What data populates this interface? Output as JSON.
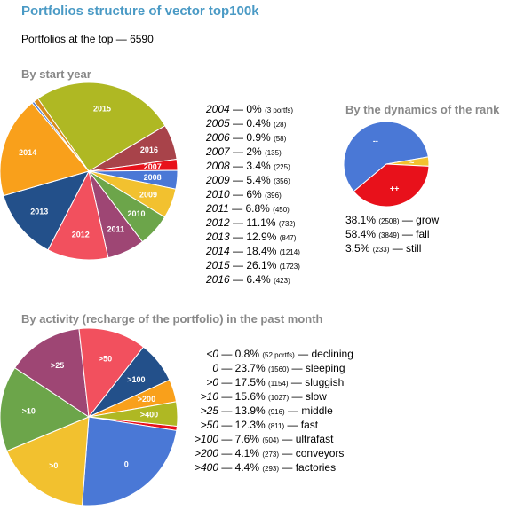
{
  "header": {
    "title": "Portfolios structure of vector top100k",
    "subtitle": "Portfolios at the top — 6590"
  },
  "chart_data": [
    {
      "type": "pie",
      "title": "By start year",
      "slices": [
        {
          "label": "2015",
          "percent": 26.1,
          "count": "(1723)",
          "color": "#afb823"
        },
        {
          "label": "2016",
          "percent": 6.4,
          "count": "(423)",
          "color": "#a8434a"
        },
        {
          "label": "2007",
          "percent": 2,
          "count": "(135)",
          "color": "#e8111b"
        },
        {
          "label": "2008",
          "percent": 3.4,
          "count": "(225)",
          "color": "#4a78d6"
        },
        {
          "label": "2009",
          "percent": 5.4,
          "count": "(356)",
          "color": "#f2c12f"
        },
        {
          "label": "2010",
          "percent": 6,
          "count": "(396)",
          "color": "#6ca54a"
        },
        {
          "label": "2011",
          "percent": 6.8,
          "count": "(450)",
          "color": "#9e4674"
        },
        {
          "label": "2012",
          "percent": 11.1,
          "count": "(732)",
          "color": "#f2505e"
        },
        {
          "label": "2013",
          "percent": 12.9,
          "count": "(847)",
          "color": "#23508a"
        },
        {
          "label": "2014",
          "percent": 18.4,
          "count": "(1214)",
          "color": "#f9a01b"
        },
        {
          "label": "2004",
          "percent": 0,
          "count": "(3 portfs)",
          "color": "#4a78d6"
        },
        {
          "label": "2005",
          "percent": 0.4,
          "count": "(28)",
          "color": "#4a78d6"
        },
        {
          "label": "2006",
          "percent": 0.9,
          "count": "(58)",
          "color": "#d98b1c"
        }
      ],
      "legend_order": [
        "2004",
        "2005",
        "2006",
        "2007",
        "2008",
        "2009",
        "2010",
        "2011",
        "2012",
        "2013",
        "2014",
        "2015",
        "2016"
      ]
    },
    {
      "type": "pie",
      "title": "By the dynamics of the rank",
      "slices": [
        {
          "label": "--",
          "percent": 58.4,
          "count": "(3849)",
          "color": "#4a78d6",
          "desc": "fall"
        },
        {
          "label": "~",
          "percent": 3.5,
          "count": "(233)",
          "color": "#f2c12f",
          "desc": "still"
        },
        {
          "label": "++",
          "percent": 38.1,
          "count": "(2508)",
          "color": "#e8111b",
          "desc": "grow"
        }
      ],
      "legend": [
        {
          "percent": "38.1%",
          "count": "(2508)",
          "desc": "— grow"
        },
        {
          "percent": "58.4%",
          "count": "(3849)",
          "desc": "— fall"
        },
        {
          "percent": "3.5%",
          "count": "(233)",
          "desc": "— still"
        }
      ]
    },
    {
      "type": "pie",
      "title": "By activity (recharge of the portfolio) in the past month",
      "slices": [
        {
          "label": "<0",
          "percent": 0.8,
          "count": "(52 portfs)",
          "color": "#e8111b",
          "desc": "declining"
        },
        {
          "label": "0",
          "percent": 23.7,
          "count": "(1560)",
          "color": "#4a78d6",
          "desc": "sleeping"
        },
        {
          "label": ">0",
          "percent": 17.5,
          "count": "(1154)",
          "color": "#f2c12f",
          "desc": "sluggish"
        },
        {
          "label": ">10",
          "percent": 15.6,
          "count": "(1027)",
          "color": "#6ca54a",
          "desc": "slow"
        },
        {
          "label": ">25",
          "percent": 13.9,
          "count": "(916)",
          "color": "#9e4674",
          "desc": "middle"
        },
        {
          "label": ">50",
          "percent": 12.3,
          "count": "(811)",
          "color": "#f2505e",
          "desc": "fast"
        },
        {
          "label": ">100",
          "percent": 7.6,
          "count": "(504)",
          "color": "#23508a",
          "desc": "ultrafast"
        },
        {
          "label": ">200",
          "percent": 4.1,
          "count": "(273)",
          "color": "#f9a01b",
          "desc": "conveyors"
        },
        {
          "label": ">400",
          "percent": 4.4,
          "count": "(293)",
          "color": "#afb823",
          "desc": "factories"
        }
      ]
    }
  ]
}
